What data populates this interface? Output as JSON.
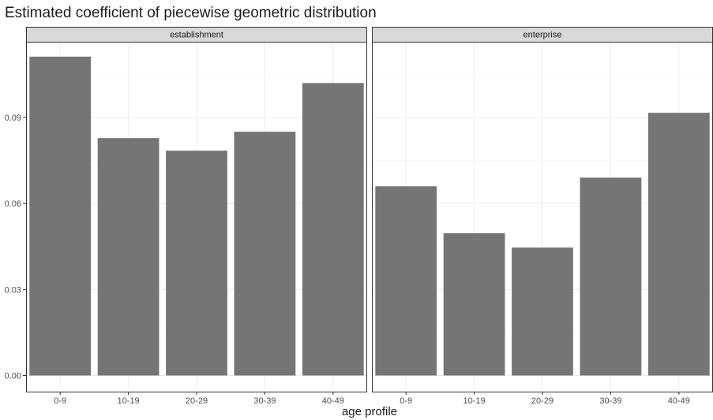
{
  "title": "Estimated coefficient of piecewise geometric distribution",
  "chart_data": {
    "type": "bar",
    "title": "Estimated coefficient of piecewise geometric distribution",
    "xlabel": "age profile",
    "ylabel": "",
    "ylim": [
      0,
      0.115
    ],
    "yticks": [
      "0.00",
      "0.03",
      "0.06",
      "0.09"
    ],
    "categories": [
      "0-9",
      "10-19",
      "20-29",
      "30-39",
      "40-49"
    ],
    "grid": true,
    "bar_color": "#757575",
    "facets": [
      {
        "label": "establishment",
        "values": [
          0.1112,
          0.0828,
          0.0784,
          0.085,
          0.102
        ]
      },
      {
        "label": "enterprise",
        "values": [
          0.066,
          0.0496,
          0.0446,
          0.069,
          0.0916
        ]
      }
    ]
  }
}
